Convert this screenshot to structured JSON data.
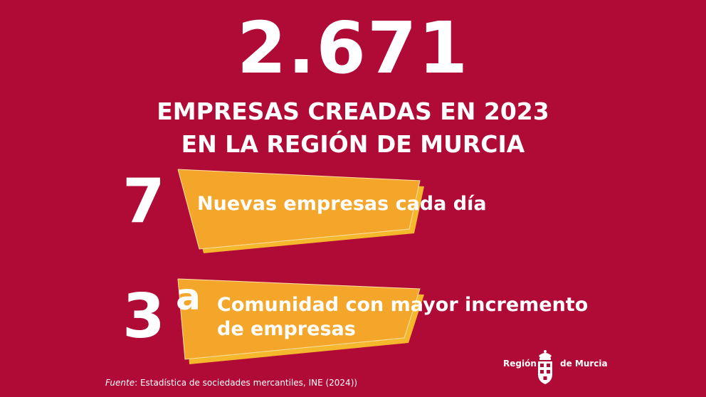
{
  "hero": {
    "number": "2.671",
    "line1": "EMPRESAS CREADAS EN 2023",
    "line2": "EN LA REGIÓN DE MURCIA"
  },
  "stats": [
    {
      "value": "7",
      "text": "Nuevas empresas cada día"
    },
    {
      "value": "3",
      "suffix": "a",
      "text_line1": "Comunidad con mayor incremento",
      "text_line2": "de empresas"
    }
  ],
  "footer": {
    "source_label": "Fuente",
    "source_text": ": Estadística de sociedades mercantiles, INE (2024))"
  },
  "logo": {
    "left_text": "Región",
    "right_text": "de Murcia"
  },
  "colors": {
    "background": "#b00a36",
    "accent": "#f4a62a",
    "accent_shadow": "#f0c020"
  },
  "icons": [
    "coat-of-arms-icon"
  ]
}
